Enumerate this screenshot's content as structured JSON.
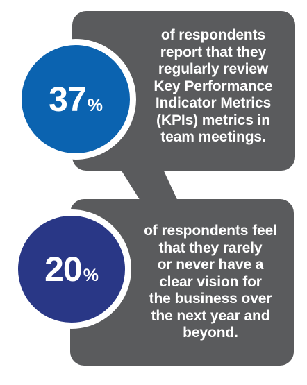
{
  "stats": [
    {
      "value": "37",
      "unit": "%",
      "text": "of respondents report that they regularly review Key Performance Indicator Metrics (KPIs) metrics in team meetings.",
      "circle_color": "#0b63b0"
    },
    {
      "value": "20",
      "unit": "%",
      "text": "of respondents feel that they rarely or never have a clear vision for the business over the next year and beyond.",
      "circle_color": "#293786"
    }
  ],
  "panel_color": "#5a5b5d"
}
